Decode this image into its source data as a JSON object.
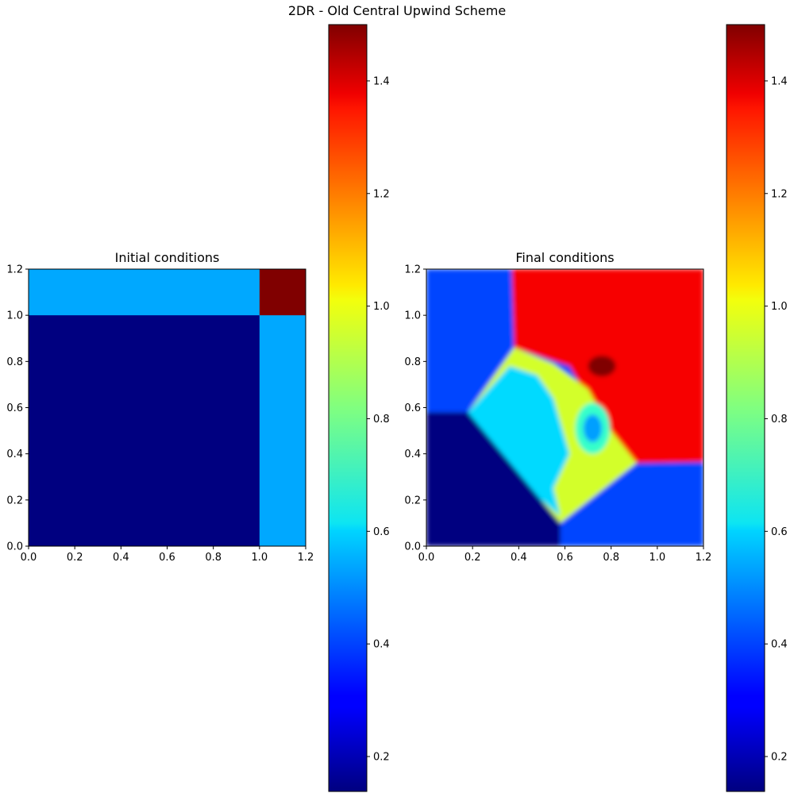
{
  "figure": {
    "title": "2DR - Old Central Upwind Scheme"
  },
  "chart_data": [
    {
      "type": "heatmap",
      "title": "Initial conditions",
      "xlim": [
        0,
        1.2
      ],
      "ylim": [
        0,
        1.2
      ],
      "x_ticks": [
        "0.0",
        "0.2",
        "0.4",
        "0.6",
        "0.8",
        "1.0",
        "1.2"
      ],
      "y_ticks": [
        "0.0",
        "0.2",
        "0.4",
        "0.6",
        "0.8",
        "1.0",
        "1.2"
      ],
      "regions": [
        {
          "x0": 0.0,
          "x1": 1.2,
          "y0": 0.0,
          "y1": 1.2,
          "value": 0.5323
        },
        {
          "x0": 0.0,
          "x1": 1.0,
          "y0": 0.0,
          "y1": 1.0,
          "value": 0.138
        },
        {
          "x0": 1.0,
          "x1": 1.2,
          "y0": 1.0,
          "y1": 1.2,
          "value": 1.5
        }
      ],
      "colorbar": {
        "cmap": "jet",
        "vmin": 0.138,
        "vmax": 1.5,
        "ticks": [
          0.2,
          0.4,
          0.6,
          0.8,
          1.0,
          1.2,
          1.4
        ],
        "tick_labels": [
          "0.2",
          "0.4",
          "0.6",
          "0.8",
          "1.0",
          "1.2",
          "1.4"
        ]
      }
    },
    {
      "type": "heatmap",
      "title": "Final conditions",
      "xlim": [
        0,
        1.2
      ],
      "ylim": [
        0,
        1.2
      ],
      "x_ticks": [
        "0.0",
        "0.2",
        "0.4",
        "0.6",
        "0.8",
        "1.0",
        "1.2"
      ],
      "y_ticks": [
        "0.0",
        "0.2",
        "0.4",
        "0.6",
        "0.8",
        "1.0",
        "1.2"
      ],
      "regions": [
        {
          "shape": "poly",
          "points": [
            [
              0,
              0
            ],
            [
              1.2,
              0
            ],
            [
              1.2,
              1.2
            ],
            [
              0,
              1.2
            ]
          ],
          "value": 0.4
        },
        {
          "shape": "poly",
          "points": [
            [
              0.37,
              1.2
            ],
            [
              1.2,
              1.2
            ],
            [
              1.2,
              0.365
            ],
            [
              0.91,
              0.36
            ],
            [
              0.78,
              0.5
            ],
            [
              0.62,
              0.78
            ],
            [
              0.38,
              0.86
            ]
          ],
          "value": 1.34
        },
        {
          "shape": "poly",
          "points": [
            [
              0.18,
              0.58
            ],
            [
              0.38,
              0.86
            ],
            [
              0.55,
              0.79
            ],
            [
              0.7,
              0.68
            ],
            [
              0.8,
              0.5
            ],
            [
              0.91,
              0.36
            ],
            [
              0.58,
              0.1
            ]
          ],
          "value": 0.93
        },
        {
          "shape": "poly",
          "points": [
            [
              0.18,
              0.58
            ],
            [
              0.36,
              0.78
            ],
            [
              0.48,
              0.74
            ],
            [
              0.55,
              0.64
            ],
            [
              0.62,
              0.4
            ],
            [
              0.55,
              0.25
            ],
            [
              0.58,
              0.13
            ],
            [
              0.38,
              0.3
            ]
          ],
          "value": 0.6
        },
        {
          "shape": "ellipse",
          "cx": 0.72,
          "cy": 0.51,
          "rx": 0.075,
          "ry": 0.11,
          "value": 0.72
        },
        {
          "shape": "ellipse",
          "cx": 0.72,
          "cy": 0.51,
          "rx": 0.04,
          "ry": 0.06,
          "value": 0.52
        },
        {
          "shape": "ellipse",
          "cx": 0.76,
          "cy": 0.78,
          "rx": 0.06,
          "ry": 0.045,
          "value": 1.52
        },
        {
          "shape": "poly",
          "points": [
            [
              0,
              0
            ],
            [
              0.58,
              0
            ],
            [
              0.58,
              0.1
            ],
            [
              0.18,
              0.58
            ],
            [
              0,
              0.58
            ]
          ],
          "value": 0.138
        }
      ],
      "colorbar": {
        "cmap": "jet",
        "vmin": 0.138,
        "vmax": 1.5,
        "ticks": [
          0.2,
          0.4,
          0.6,
          0.8,
          1.0,
          1.2,
          1.4
        ],
        "tick_labels": [
          "0.2",
          "0.4",
          "0.6",
          "0.8",
          "1.0",
          "1.2",
          "1.4"
        ]
      }
    }
  ]
}
